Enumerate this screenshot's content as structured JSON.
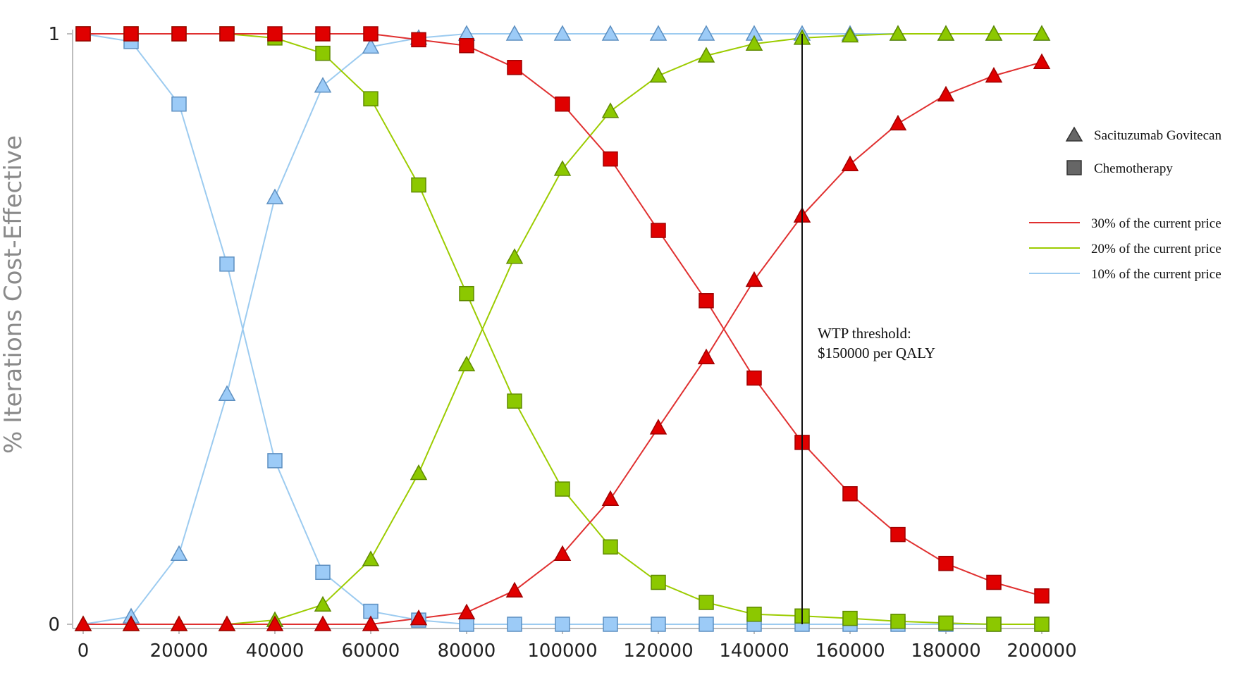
{
  "chart_data": {
    "type": "line",
    "ylabel": "% Iterations Cost-Effective",
    "xlabel": "",
    "xlim": [
      0,
      200000
    ],
    "ylim": [
      0,
      1
    ],
    "x_ticks": [
      "0",
      "20000",
      "40000",
      "60000",
      "80000",
      "100000",
      "120000",
      "140000",
      "160000",
      "180000",
      "200000"
    ],
    "y_ticks": [
      "0",
      "1"
    ],
    "x": [
      0,
      10000,
      20000,
      30000,
      40000,
      50000,
      60000,
      70000,
      80000,
      90000,
      100000,
      110000,
      120000,
      130000,
      140000,
      150000,
      160000,
      170000,
      180000,
      190000,
      200000
    ],
    "grid": false,
    "legend_position": "right",
    "marker_legend": [
      {
        "label": "Sacituzumab Govitecan",
        "marker": "triangle"
      },
      {
        "label": "Chemotherapy",
        "marker": "square"
      }
    ],
    "series": [
      {
        "name": "30% of the current price",
        "color": "#e00000",
        "line_color": "#e03030",
        "stroke": "#a00000",
        "triangle": [
          0,
          0,
          0,
          0,
          0,
          0,
          0,
          0.01,
          0.02,
          0.057,
          0.119,
          0.212,
          0.333,
          0.452,
          0.583,
          0.692,
          0.779,
          0.848,
          0.897,
          0.929,
          0.952
        ],
        "square": [
          1,
          1,
          1,
          1,
          1,
          1,
          1,
          0.99,
          0.98,
          0.943,
          0.881,
          0.788,
          0.667,
          0.548,
          0.417,
          0.308,
          0.221,
          0.152,
          0.103,
          0.071,
          0.048
        ]
      },
      {
        "name": "20% of the current price",
        "color": "#8cc800",
        "line_color": "#9ccc00",
        "stroke": "#5f8a00",
        "triangle": [
          0,
          0,
          0,
          0,
          0.007,
          0.033,
          0.11,
          0.256,
          0.44,
          0.622,
          0.771,
          0.869,
          0.929,
          0.963,
          0.983,
          0.993,
          0.997,
          1,
          1,
          1,
          1
        ],
        "square": [
          1,
          1,
          1,
          1,
          0.993,
          0.967,
          0.89,
          0.744,
          0.56,
          0.378,
          0.229,
          0.131,
          0.071,
          0.037,
          0.017,
          0.014,
          0.01,
          0.005,
          0.002,
          0,
          0
        ]
      },
      {
        "name": "10% of the current price",
        "color": "#9ccbf7",
        "line_color": "#9ccbf0",
        "stroke": "#5d8fc0",
        "triangle": [
          0,
          0.013,
          0.119,
          0.39,
          0.723,
          0.912,
          0.978,
          0.993,
          1,
          1,
          1,
          1,
          1,
          1,
          1,
          1,
          1,
          1,
          1,
          1,
          1
        ],
        "square": [
          1,
          0.987,
          0.881,
          0.61,
          0.277,
          0.088,
          0.022,
          0.007,
          0,
          0,
          0,
          0,
          0,
          0,
          0,
          0,
          0,
          0,
          0,
          0,
          0
        ]
      }
    ],
    "threshold": {
      "x": 150000,
      "label_line1": "WTP threshold:",
      "label_line2": "$150000 per QALY"
    }
  }
}
